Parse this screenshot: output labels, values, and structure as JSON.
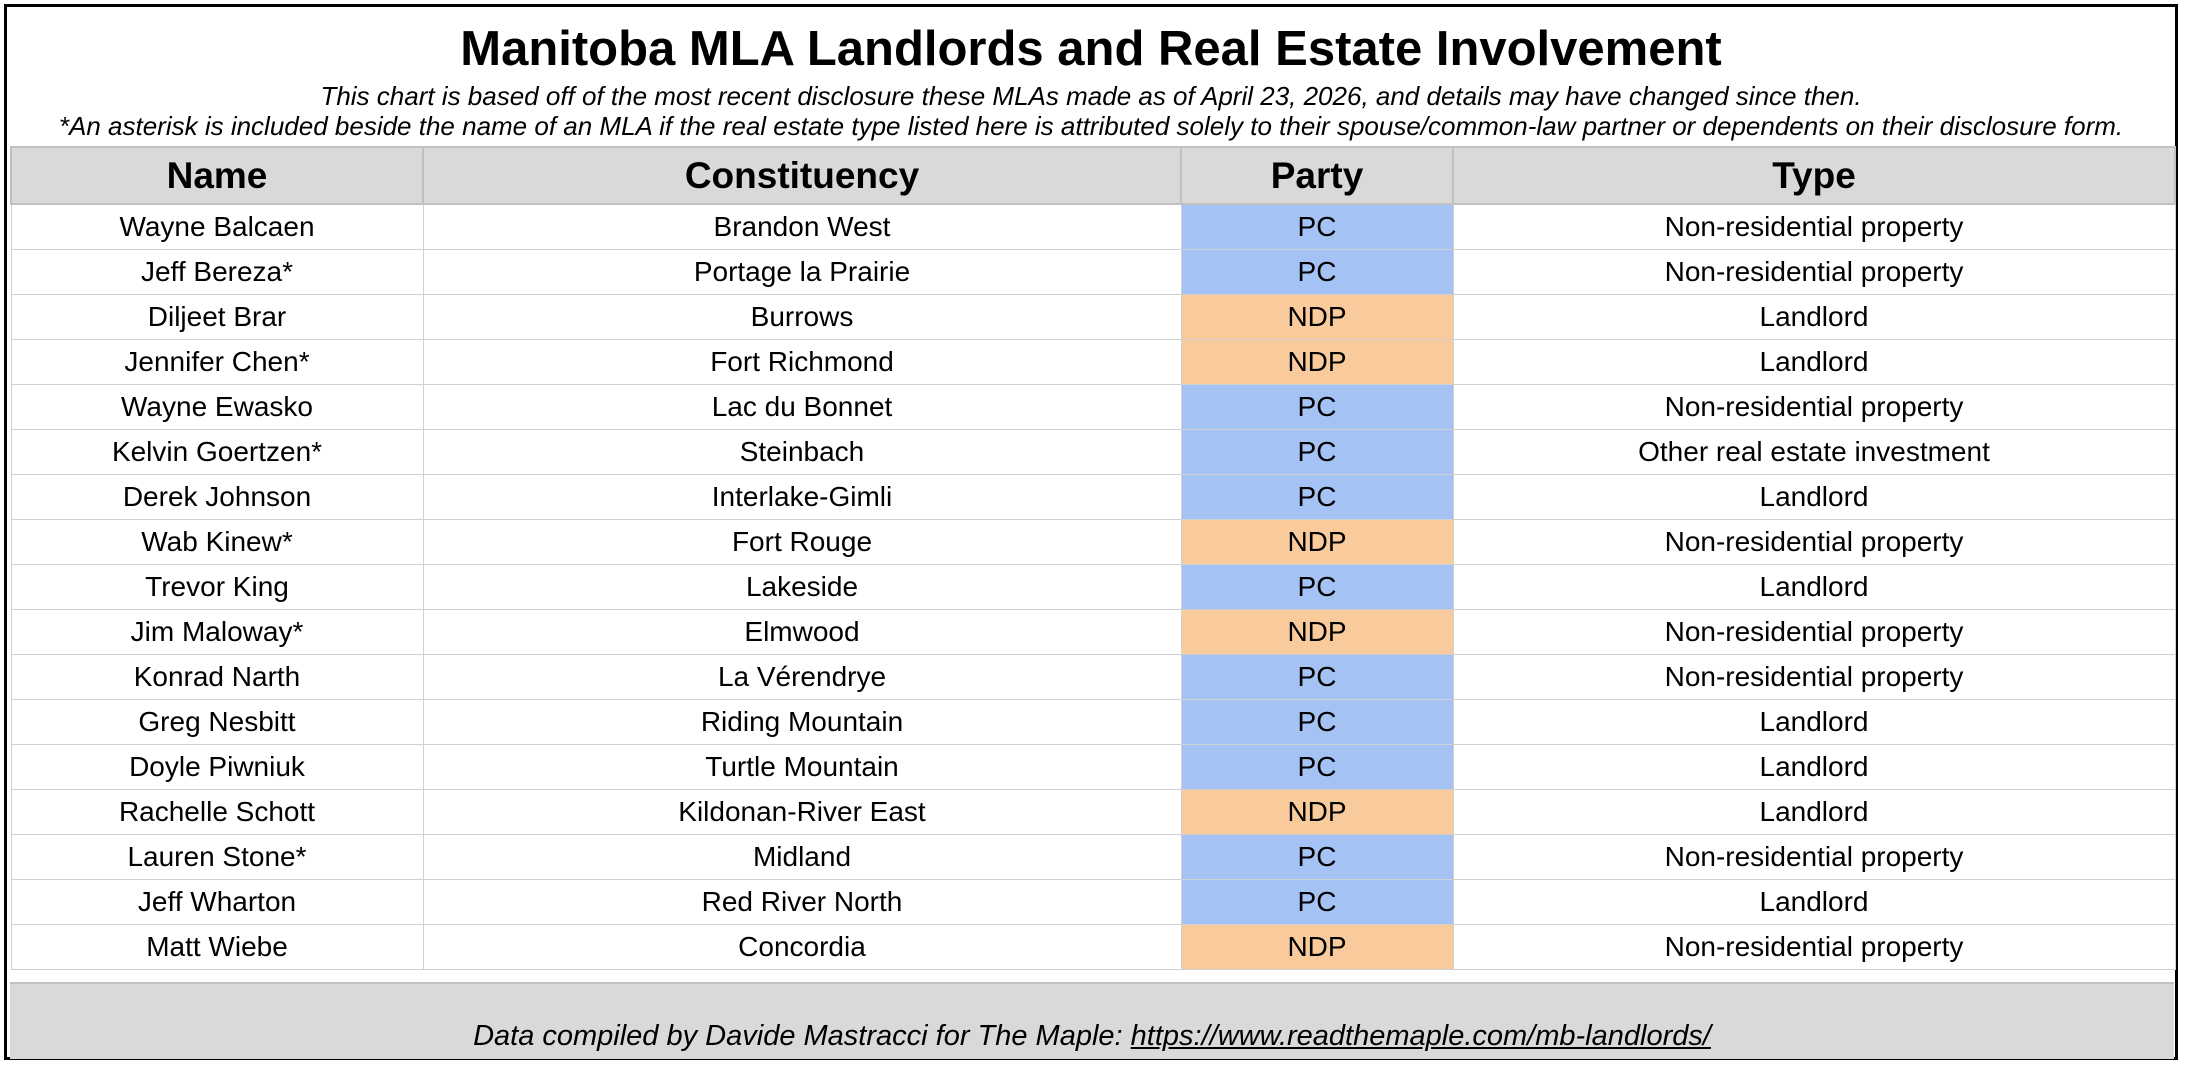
{
  "title": "Manitoba MLA Landlords and Real Estate Involvement",
  "subtitle_1": "This chart is based off of the most recent disclosure these MLAs made as of April 23, 2026, and details may have changed since then.",
  "subtitle_2": "*An asterisk is included beside the name of an MLA if the real estate type listed here is attributed solely to their spouse/common-law partner or dependents on their disclosure form.",
  "columns": [
    "Name",
    "Constituency",
    "Party",
    "Type"
  ],
  "colors": {
    "pc": "#a4c2f4",
    "ndp": "#f9cb9c",
    "header": "#d9d9d9"
  },
  "rows": [
    {
      "name": "Wayne Balcaen",
      "constituency": "Brandon West",
      "party": "PC",
      "type": "Non-residential property"
    },
    {
      "name": "Jeff Bereza*",
      "constituency": "Portage la Prairie",
      "party": "PC",
      "type": "Non-residential property"
    },
    {
      "name": "Diljeet Brar",
      "constituency": "Burrows",
      "party": "NDP",
      "type": "Landlord"
    },
    {
      "name": "Jennifer Chen*",
      "constituency": "Fort Richmond",
      "party": "NDP",
      "type": "Landlord"
    },
    {
      "name": "Wayne Ewasko",
      "constituency": "Lac du Bonnet",
      "party": "PC",
      "type": "Non-residential property"
    },
    {
      "name": "Kelvin Goertzen*",
      "constituency": "Steinbach",
      "party": "PC",
      "type": "Other real estate investment"
    },
    {
      "name": "Derek Johnson",
      "constituency": "Interlake-Gimli",
      "party": "PC",
      "type": "Landlord"
    },
    {
      "name": "Wab Kinew*",
      "constituency": "Fort Rouge",
      "party": "NDP",
      "type": "Non-residential property"
    },
    {
      "name": "Trevor King",
      "constituency": "Lakeside",
      "party": "PC",
      "type": "Landlord"
    },
    {
      "name": "Jim Maloway*",
      "constituency": "Elmwood",
      "party": "NDP",
      "type": "Non-residential property"
    },
    {
      "name": "Konrad Narth",
      "constituency": "La Vérendrye",
      "party": "PC",
      "type": "Non-residential property"
    },
    {
      "name": "Greg Nesbitt",
      "constituency": "Riding Mountain",
      "party": "PC",
      "type": "Landlord"
    },
    {
      "name": "Doyle Piwniuk",
      "constituency": "Turtle Mountain",
      "party": "PC",
      "type": "Landlord"
    },
    {
      "name": "Rachelle Schott",
      "constituency": "Kildonan-River East",
      "party": "NDP",
      "type": "Landlord"
    },
    {
      "name": "Lauren Stone*",
      "constituency": "Midland",
      "party": "PC",
      "type": "Non-residential property"
    },
    {
      "name": "Jeff Wharton",
      "constituency": "Red River North",
      "party": "PC",
      "type": "Landlord"
    },
    {
      "name": "Matt Wiebe",
      "constituency": "Concordia",
      "party": "NDP",
      "type": "Non-residential property"
    }
  ],
  "footer": {
    "text": "Data compiled by Davide Mastracci for The Maple: ",
    "link": "https://www.readthemaple.com/mb-landlords/"
  }
}
